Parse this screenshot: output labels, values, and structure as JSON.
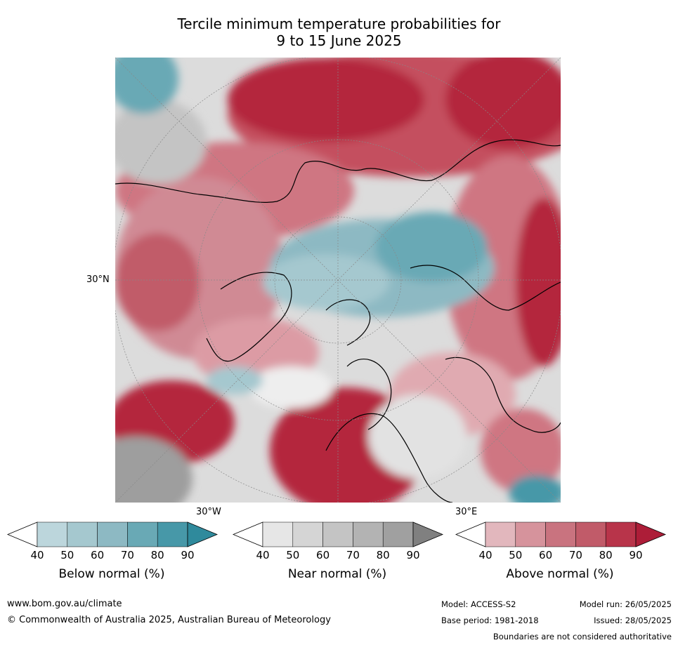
{
  "title": {
    "line1": "Tercile minimum temperature probabilities for",
    "line2": "9 to 15 June 2025"
  },
  "map": {
    "lat_label": "30°N",
    "lon_label_west": "30°W",
    "lon_label_east": "30°E",
    "colors": {
      "above": [
        "#e8bcc2",
        "#dc9ba4",
        "#cf7682",
        "#c25466",
        "#b4253d",
        "#a81a36"
      ],
      "near": [
        "#e6e6e6",
        "#d5d5d5",
        "#c4c4c4",
        "#b3b3b3",
        "#a0a0a0",
        "#808080"
      ],
      "below": [
        "#bcd6dc",
        "#a5c8cf",
        "#8db9c3",
        "#69a9b5",
        "#4798a8",
        "#2f8a9c"
      ]
    }
  },
  "colorbars": [
    {
      "label": "Below normal (%)",
      "ticks": [
        "40",
        "50",
        "60",
        "70",
        "80",
        "90"
      ],
      "colors": [
        "#bcd6dc",
        "#a5c8cf",
        "#8db9c3",
        "#69a9b5",
        "#4798a8",
        "#2f8a9c"
      ]
    },
    {
      "label": "Near normal (%)",
      "ticks": [
        "40",
        "50",
        "60",
        "70",
        "80",
        "90"
      ],
      "colors": [
        "#e6e6e6",
        "#d5d5d5",
        "#c4c4c4",
        "#b3b3b3",
        "#a0a0a0",
        "#808080"
      ]
    },
    {
      "label": "Above normal (%)",
      "ticks": [
        "40",
        "50",
        "60",
        "70",
        "80",
        "90"
      ],
      "colors": [
        "#e2b7bd",
        "#d6939c",
        "#c9737f",
        "#c15b69",
        "#b8344a",
        "#ad1d38"
      ]
    }
  ],
  "footer": {
    "website": "www.bom.gov.au/climate",
    "copyright": "© Commonwealth of Australia 2025, Australian Bureau of Meteorology",
    "model": "Model: ACCESS-S2",
    "model_run": "Model run: 26/05/2025",
    "base_period": "Base period: 1981-2018",
    "issued": "Issued: 28/05/2025",
    "disclaimer": "Boundaries are not considered authoritative"
  }
}
